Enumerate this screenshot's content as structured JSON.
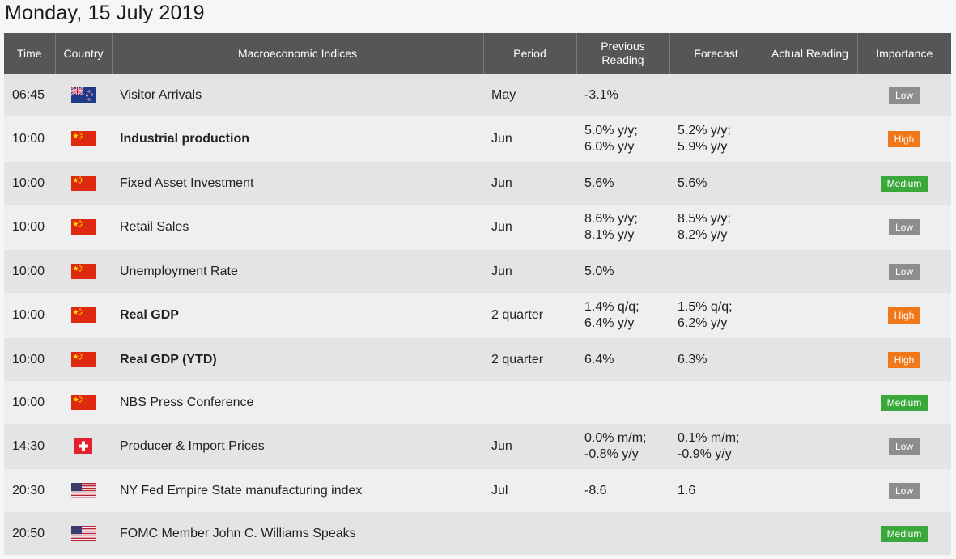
{
  "title": "Monday, 15 July 2019",
  "headers": {
    "time": "Time",
    "country": "Country",
    "indices": "Macroeconomic Indices",
    "period": "Period",
    "previous_line1": "Previous",
    "previous_line2": "Reading",
    "forecast": "Forecast",
    "actual": "Actual Reading",
    "importance": "Importance"
  },
  "rows": [
    {
      "time": "06:45",
      "country": "nz-flag-icon",
      "name": "Visitor Arrivals",
      "bold": false,
      "period": "May",
      "prev1": "-3.1%",
      "prev2": "",
      "fc1": "",
      "fc2": "",
      "actual": "",
      "importance": "Low",
      "height": 53
    },
    {
      "time": "10:00",
      "country": "cn-flag-icon",
      "name": "Industrial production",
      "bold": true,
      "period": "Jun",
      "prev1": "5.0% y/y;",
      "prev2": "6.0% y/y",
      "fc1": "5.2% y/y;",
      "fc2": "5.9% y/y",
      "actual": "",
      "importance": "High",
      "height": 56
    },
    {
      "time": "10:00",
      "country": "cn-flag-icon",
      "name": "Fixed Asset Investment",
      "bold": false,
      "period": "Jun",
      "prev1": "5.6%",
      "prev2": "",
      "fc1": "5.6%",
      "fc2": "",
      "actual": "",
      "importance": "Medium",
      "height": 53
    },
    {
      "time": "10:00",
      "country": "cn-flag-icon",
      "name": "Retail Sales",
      "bold": false,
      "period": "Jun",
      "prev1": "8.6% y/y;",
      "prev2": "8.1% y/y",
      "fc1": "8.5% y/y;",
      "fc2": "8.2% y/y",
      "actual": "",
      "importance": "Low",
      "height": 56
    },
    {
      "time": "10:00",
      "country": "cn-flag-icon",
      "name": "Unemployment Rate",
      "bold": false,
      "period": "Jun",
      "prev1": "5.0%",
      "prev2": "",
      "fc1": "",
      "fc2": "",
      "actual": "",
      "importance": "Low",
      "height": 53
    },
    {
      "time": "10:00",
      "country": "cn-flag-icon",
      "name": "Real GDP",
      "bold": true,
      "period": "2 quarter",
      "prev1": "1.4% q/q;",
      "prev2": "6.4% y/y",
      "fc1": "1.5% q/q;",
      "fc2": "6.2% y/y",
      "actual": "",
      "importance": "High",
      "height": 56
    },
    {
      "time": "10:00",
      "country": "cn-flag-icon",
      "name": "Real GDP (YTD)",
      "bold": true,
      "period": "2 quarter",
      "prev1": "6.4%",
      "prev2": "",
      "fc1": "6.3%",
      "fc2": "",
      "actual": "",
      "importance": "High",
      "height": 53
    },
    {
      "time": "10:00",
      "country": "cn-flag-icon",
      "name": "NBS Press Conference",
      "bold": false,
      "period": "",
      "prev1": "",
      "prev2": "",
      "fc1": "",
      "fc2": "",
      "actual": "",
      "importance": "Medium",
      "height": 53
    },
    {
      "time": "14:30",
      "country": "ch-flag-icon",
      "name": "Producer & Import Prices",
      "bold": false,
      "period": "Jun",
      "prev1": "0.0% m/m;",
      "prev2": "-0.8% y/y",
      "fc1": "0.1% m/m;",
      "fc2": "-0.9% y/y",
      "actual": "",
      "importance": "Low",
      "height": 56
    },
    {
      "time": "20:30",
      "country": "us-flag-icon",
      "name": "NY Fed Empire State manufacturing index",
      "bold": false,
      "period": "Jul",
      "prev1": "-8.6",
      "prev2": "",
      "fc1": "1.6",
      "fc2": "",
      "actual": "",
      "importance": "Low",
      "height": 53
    },
    {
      "time": "20:50",
      "country": "us-flag-icon",
      "name": "FOMC Member John C. Williams Speaks",
      "bold": false,
      "period": "",
      "prev1": "",
      "prev2": "",
      "fc1": "",
      "fc2": "",
      "actual": "",
      "importance": "Medium",
      "height": 53
    }
  ],
  "colors": {
    "header_bg": "#565656",
    "row_odd": "#e4e4e4",
    "row_even": "#efefef",
    "low": "#8d8d8d",
    "high": "#f07818",
    "medium": "#3aa83a"
  }
}
